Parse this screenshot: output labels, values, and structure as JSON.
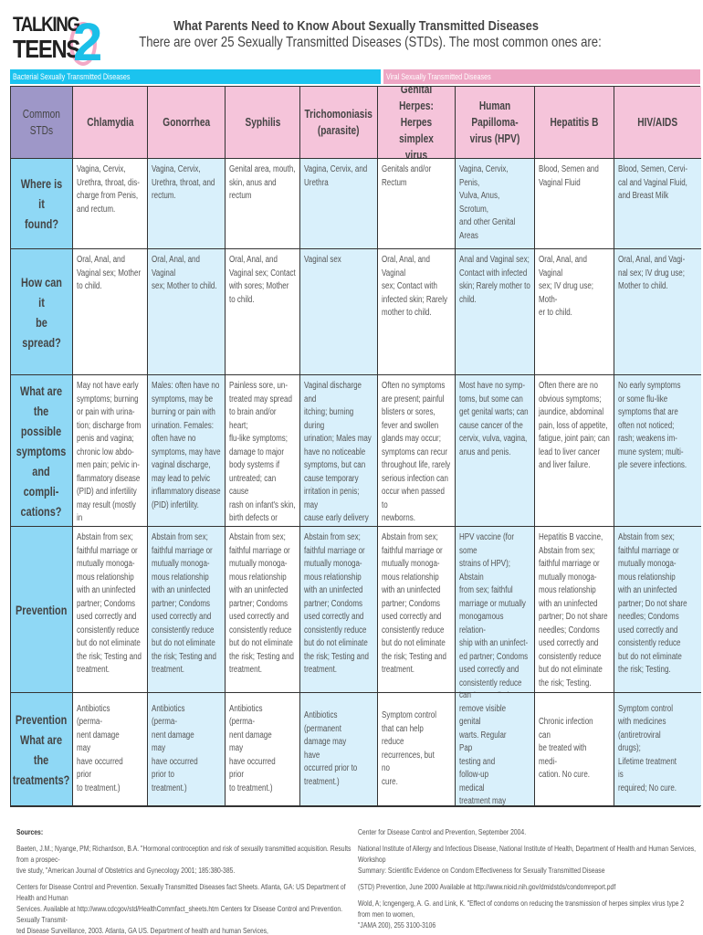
{
  "logo": {
    "text_line1": "TALKING",
    "text_line2": "TEENS",
    "numeral": "2"
  },
  "header": {
    "title": "What Parents Need to Know About Sexually Transmitted Diseases",
    "subtitle": "There are over 25 Sexually Transmitted Diseases (STDs).  The most common ones are:"
  },
  "banners": {
    "bacterial": "Bacterial Sexually Transmitted Diseases",
    "viral": "Viral Sexually Transmitted Diseases"
  },
  "colors": {
    "bacterial": "#1bc3ef",
    "viral": "#eea6c4",
    "header_pink": "#f5c4da",
    "row_header": "#8fd8f5",
    "corner": "#9e97c8",
    "alt_column": "#d9f0fb"
  },
  "table": {
    "corner": "Common\nSTDs",
    "columns": [
      "Chlamydia",
      "Gonorrhea",
      "Syphilis",
      "Trichomoniasis\n(parasite)",
      "Genital Herpes:\nHerpes simplex\nvirus",
      "Human Papilloma-\nvirus (HPV)",
      "Hepatitis B",
      "HIV/AIDS"
    ],
    "rows": [
      {
        "label": "Where is it\nfound?",
        "cells": [
          "Vagina, Cervix,\nUrethra, throat, dis-\ncharge from Penis,\nand rectum.",
          "Vagina, Cervix,\nUrethra, throat, and\nrectum.",
          "Genital area, mouth,\nskin, anus and rectum",
          "Vagina, Cervix, and\nUrethra",
          "Genitals and/or\nRectum",
          "Vagina, Cervix, Penis,\nVulva, Anus, Scrotum,\nand other Genital\nAreas",
          "Blood, Semen and\nVaginal Fluid",
          "Blood, Semen, Cervi-\ncal and Vaginal Fluid,\nand Breast Milk"
        ]
      },
      {
        "label": "How can it\nbe spread?",
        "cells": [
          "Oral, Anal, and\nVaginal sex; Mother\nto child.",
          "Oral, Anal, and Vaginal\nsex; Mother to child.",
          "Oral, Anal, and\nVaginal sex; Contact\nwith sores; Mother\nto child.",
          "Vaginal sex",
          "Oral, Anal, and Vaginal\nsex; Contact with\ninfected skin; Rarely\nmother to child.",
          "Anal and Vaginal sex;\nContact with infected\nskin; Rarely mother to\nchild.",
          "Oral, Anal, and Vaginal\nsex; IV drug use; Moth-\ner to child.",
          "Oral, Anal, and Vagi-\nnal sex; IV drug use;\nMother to child."
        ]
      },
      {
        "label": "What are\nthe possible\nsymptoms\nand compli-\ncations?",
        "cells": [
          "May not have early\nsymptoms; burning\nor pain with urina-\ntion; discharge from\npenis and vagina;\nchronic low abdo-\nmen pain; pelvic in-\nflammatory disease\n(PID) and infertility\nmay result (mostly in\nfemales.)",
          "Males: often have no\nsymptoms, may be\nburning or pain with\nurination.  Females:\noften have no\nsymptoms, may have\nvaginal discharge,\nmay lead to pelvic\ninflammatory disease\n(PID) infertility.",
          "Painless sore, un-\ntreated may spread\nto brain and/or heart;\nflu-like symptoms;\ndamage to major\nbody systems if\nuntreated; can cause\nrash on infant's skin,\nbirth defects or other\nproblems with organs\nor possible stillbirth.",
          "Vaginal discharge and\nitching; burning during\nurination; Males may\nhave no noticeable\nsymptoms, but can\ncause temporary\nirritation in penis; may\ncause early delivery\nand low birth weight\nbabies.",
          "Often no symptoms\nare present; painful\nblisters or sores,\nfever and swollen\nglands may occur;\nsymptoms can recur\nthroughout life, rarely\nserious infection can\noccur when passed to\nnewborns.",
          "Most have no symp-\ntoms, but some can\nget genital warts; can\ncause cancer of the\ncervix, vulva, vagina,\nanus and penis.",
          "Often there are no\nobvious symptoms;\njaundice, abdominal\npain, loss of appetite,\nfatigue, joint pain; can\nlead to liver cancer\nand liver failure.",
          "No early symptoms\nor some flu-like\nsymptoms that are\noften not noticed;\nrash; weakens im-\nmune system; multi-\nple severe infections."
        ]
      },
      {
        "label": "Prevention",
        "cells": [
          "Abstain from sex;\nfaithful marriage or\nmutually monoga-\nmous relationship\nwith an uninfected\npartner; Condoms\nused correctly and\nconsistently reduce\nbut do not eliminate\nthe risk; Testing and\ntreatment.",
          "Abstain from sex;\nfaithful marriage or\nmutually monoga-\nmous relationship\nwith an uninfected\npartner; Condoms\nused correctly and\nconsistently reduce\nbut do not eliminate\nthe risk; Testing and\ntreatment.",
          "Abstain from sex;\nfaithful marriage or\nmutually monoga-\nmous relationship\nwith an uninfected\npartner; Condoms\nused correctly and\nconsistently reduce\nbut do not eliminate\nthe risk; Testing and\ntreatment.",
          "Abstain from sex;\nfaithful marriage or\nmutually monoga-\nmous relationship\nwith an uninfected\npartner; Condoms\nused correctly and\nconsistently reduce\nbut do not eliminate\nthe risk; Testing and\ntreatment.",
          "Abstain from sex;\nfaithful marriage or\nmutually monoga-\nmous relationship\nwith an uninfected\npartner; Condoms\nused correctly and\nconsistently reduce\nbut do not eliminate\nthe risk; Testing and\ntreatment.",
          "HPV vaccine (for some\nstrains of HPV); Abstain\nfrom sex; faithful\nmarriage or mutually\nmonogamous relation-\nship with an uninfect-\ned partner; Condoms\nused correctly and\nconsistently reduce\nbut do not eliminate\nthe risk.",
          "Hepatitis B vaccine,\nAbstain from sex;\nfaithful marriage or\nmutually monoga-\nmous relationship\nwith an uninfected\npartner; Do not share\nneedles; Condoms\nused correctly and\nconsistently reduce\nbut do not eliminate\nthe risk; Testing.",
          "Abstain from sex;\nfaithful marriage or\nmutually monoga-\nmous relationship\nwith an uninfected\npartner; Do not share\nneedles; Condoms\nused correctly and\nconsistently reduce\nbut do not eliminate\nthe risk; Testing."
        ]
      },
      {
        "label": "Prevention\nWhat are the\ntreatments?",
        "cells": [
          "Antibiotics (perma-\nnent damage may\nhave occurred prior\nto treatment.)",
          "Antibiotics (perma-\nnent damage may\nhave occurred prior to\ntreatment.)",
          "Antibiotics (perma-\nnent damage may\nhave occurred prior\nto treatment.)",
          "Antibiotics (permanent\ndamage may have\noccurred prior to\ntreatment.)",
          "Symptom control\nthat can help reduce\nrecurrences, but no\ncure.",
          "No cure for infection,\nbut medications can\nremove visible genital\nwarts.  Regular Pap\ntesting and follow-up\nmedical treatment may\ndeter development of\ncervical cancer.",
          "Chronic infection can\nbe treated with medi-\ncation.  No cure.",
          "Symptom control\nwith medicines\n(antiretroviral drugs);\nLifetime treatment is\nrequired; No cure."
        ]
      }
    ]
  },
  "sources": {
    "heading": "Sources:",
    "left": [
      "Baeten, J.M.; Nyange, PM; Richardson, B.A. \"Hormonal controception and risk of sexually transmitted acquisition. Results from a prospec-\ntive  study, \"American Journal of Obstetrics and Gynecology 2001; 185:380-385.",
      "Centers for Disease Control and Prevention. Sexually Transmitted Diseases fact Sheets. Atlanta, GA: US Department of Health and Human\nServices. Available at http://www.cdcgov/std/HealthCommfact_sheets.htm Centers for Disease Control and Prevention. Sexually  Transmit-\nted  Disease Surveillance,  2003. Atlanta,  GA US. Department of health and human  Services,"
    ],
    "right": [
      "Center for Disease Control and Prevention,  September 2004.",
      "National Institute of Allergy and Infectious Disease, National Institute of Health, Department of Health and Human Services, Workshop\nSummary: Scientific Evidence on Condom Effectiveness for Sexually Transmitted Disease",
      "(STD) Prevention, June 2000 Available at http://www.nioid.nih.gov/dmidstds/condomreport.pdf",
      "Wold, A; Icngengerg, A. G. and Link, K. \"Effect of condoms on reducing the transmission of herpes simplex virus type 2 from men to women,\n\"JAMA 200), 255 3100-3106"
    ]
  }
}
